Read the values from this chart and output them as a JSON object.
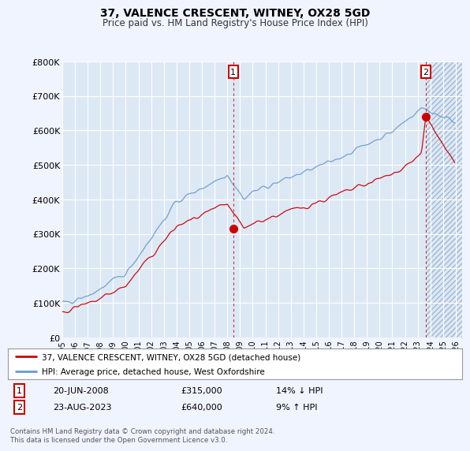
{
  "title": "37, VALENCE CRESCENT, WITNEY, OX28 5GD",
  "subtitle": "Price paid vs. HM Land Registry's House Price Index (HPI)",
  "legend_line1": "37, VALENCE CRESCENT, WITNEY, OX28 5GD (detached house)",
  "legend_line2": "HPI: Average price, detached house, West Oxfordshire",
  "annotation1_label": "1",
  "annotation1_date": "20-JUN-2008",
  "annotation1_price": "£315,000",
  "annotation1_hpi": "14% ↓ HPI",
  "annotation2_label": "2",
  "annotation2_date": "23-AUG-2023",
  "annotation2_price": "£640,000",
  "annotation2_hpi": "9% ↑ HPI",
  "footer": "Contains HM Land Registry data © Crown copyright and database right 2024.\nThis data is licensed under the Open Government Licence v3.0.",
  "price_color": "#cc0000",
  "hpi_color": "#6699cc",
  "background_color": "#f0f4ff",
  "plot_bg_color": "#dde8f5",
  "grid_color": "#ffffff",
  "hatch_color": "#c8d8ec",
  "ylim": [
    0,
    800000
  ],
  "yticks": [
    0,
    100000,
    200000,
    300000,
    400000,
    500000,
    600000,
    700000,
    800000
  ],
  "ytick_labels": [
    "£0",
    "£100K",
    "£200K",
    "£300K",
    "£400K",
    "£500K",
    "£600K",
    "£700K",
    "£800K"
  ],
  "sale1_x": 2008.47,
  "sale1_y": 315000,
  "sale2_x": 2023.64,
  "sale2_y": 640000,
  "xmin": 1995,
  "xmax": 2026.5
}
